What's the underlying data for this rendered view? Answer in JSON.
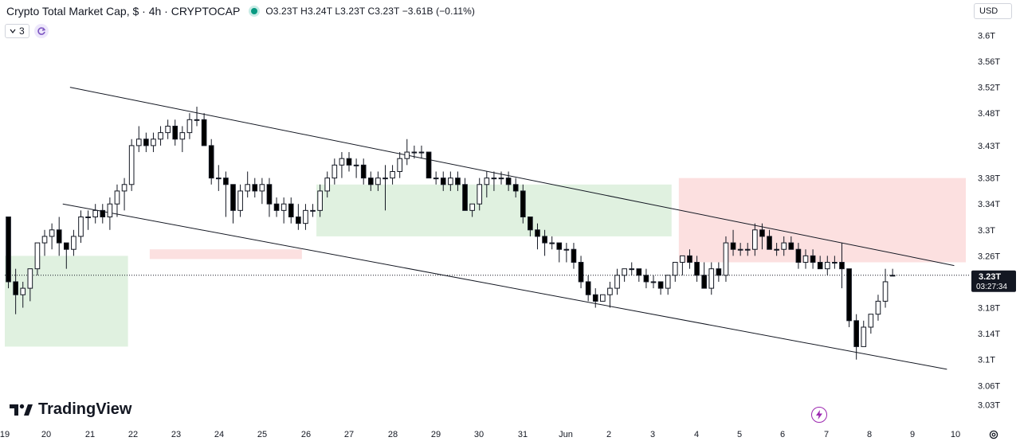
{
  "header": {
    "title": "Crypto Total Market Cap, $ · 4h · CRYPTOCAP",
    "ohlc": "O3.23T H3.24T L3.23T C3.23T −3.61B (−0.11%)",
    "indicator_count": "3"
  },
  "currency_button": "USD",
  "logo_text": "TradingView",
  "price_badge": {
    "price": "3.23T",
    "countdown": "03:27:34"
  },
  "colors": {
    "up": "#ffffff",
    "down": "#000000",
    "cloud_bull": "#a5d6a7",
    "cloud_bear": "#f5a6a6",
    "accent": "#9c27b0"
  },
  "icons": [
    "chevron-down-icon",
    "refresh-icon",
    "flash-icon",
    "gear-icon",
    "tradingview-logo-icon"
  ],
  "chart_data": {
    "type": "candlestick",
    "title": "Crypto Total Market Cap",
    "timeframe": "4h",
    "y_axis": {
      "ticks": [
        "3.6T",
        "3.56T",
        "3.52T",
        "3.48T",
        "3.43T",
        "3.38T",
        "3.34T",
        "3.3T",
        "3.26T",
        "3.23T",
        "3.18T",
        "3.14T",
        "3.1T",
        "3.06T",
        "3.03T"
      ],
      "tick_values": [
        3.6,
        3.56,
        3.52,
        3.48,
        3.43,
        3.38,
        3.34,
        3.3,
        3.26,
        3.18,
        3.14,
        3.1,
        3.06,
        3.03
      ],
      "range": [
        3.01,
        3.63
      ]
    },
    "x_axis": {
      "ticks": [
        "19",
        "20",
        "21",
        "22",
        "23",
        "24",
        "25",
        "26",
        "27",
        "28",
        "29",
        "30",
        "31",
        "Jun",
        "2",
        "3",
        "4",
        "5",
        "6",
        "7",
        "8",
        "9",
        "10"
      ],
      "index_range": [
        0.0,
        132.6
      ]
    },
    "current_price": 3.23,
    "candles": [
      [
        3.32,
        3.32,
        3.21,
        3.22
      ],
      [
        3.22,
        3.24,
        3.17,
        3.2
      ],
      [
        3.2,
        3.22,
        3.18,
        3.21
      ],
      [
        3.21,
        3.24,
        3.19,
        3.24
      ],
      [
        3.24,
        3.28,
        3.23,
        3.28
      ],
      [
        3.28,
        3.3,
        3.26,
        3.29
      ],
      [
        3.29,
        3.31,
        3.27,
        3.3
      ],
      [
        3.3,
        3.32,
        3.26,
        3.28
      ],
      [
        3.28,
        3.28,
        3.24,
        3.27
      ],
      [
        3.27,
        3.3,
        3.26,
        3.29
      ],
      [
        3.29,
        3.33,
        3.28,
        3.32
      ],
      [
        3.32,
        3.33,
        3.3,
        3.32
      ],
      [
        3.32,
        3.34,
        3.31,
        3.33
      ],
      [
        3.33,
        3.34,
        3.31,
        3.32
      ],
      [
        3.32,
        3.35,
        3.3,
        3.34
      ],
      [
        3.34,
        3.37,
        3.32,
        3.36
      ],
      [
        3.36,
        3.38,
        3.33,
        3.37
      ],
      [
        3.37,
        3.44,
        3.36,
        3.43
      ],
      [
        3.43,
        3.46,
        3.42,
        3.44
      ],
      [
        3.44,
        3.45,
        3.42,
        3.43
      ],
      [
        3.43,
        3.45,
        3.42,
        3.44
      ],
      [
        3.44,
        3.46,
        3.43,
        3.45
      ],
      [
        3.45,
        3.47,
        3.44,
        3.46
      ],
      [
        3.46,
        3.47,
        3.43,
        3.44
      ],
      [
        3.44,
        3.46,
        3.42,
        3.45
      ],
      [
        3.45,
        3.48,
        3.44,
        3.47
      ],
      [
        3.47,
        3.49,
        3.46,
        3.47
      ],
      [
        3.47,
        3.48,
        3.43,
        3.43
      ],
      [
        3.43,
        3.44,
        3.37,
        3.38
      ],
      [
        3.38,
        3.4,
        3.36,
        3.38
      ],
      [
        3.38,
        3.39,
        3.32,
        3.37
      ],
      [
        3.37,
        3.37,
        3.31,
        3.33
      ],
      [
        3.33,
        3.37,
        3.32,
        3.36
      ],
      [
        3.36,
        3.39,
        3.35,
        3.37
      ],
      [
        3.37,
        3.38,
        3.35,
        3.36
      ],
      [
        3.36,
        3.38,
        3.34,
        3.37
      ],
      [
        3.37,
        3.38,
        3.32,
        3.34
      ],
      [
        3.34,
        3.35,
        3.32,
        3.33
      ],
      [
        3.33,
        3.35,
        3.31,
        3.34
      ],
      [
        3.34,
        3.35,
        3.31,
        3.32
      ],
      [
        3.32,
        3.34,
        3.3,
        3.31
      ],
      [
        3.31,
        3.34,
        3.3,
        3.33
      ],
      [
        3.33,
        3.34,
        3.32,
        3.33
      ],
      [
        3.33,
        3.37,
        3.32,
        3.36
      ],
      [
        3.36,
        3.39,
        3.35,
        3.38
      ],
      [
        3.38,
        3.41,
        3.37,
        3.4
      ],
      [
        3.4,
        3.42,
        3.38,
        3.41
      ],
      [
        3.41,
        3.42,
        3.39,
        3.4
      ],
      [
        3.4,
        3.41,
        3.38,
        3.4
      ],
      [
        3.4,
        3.41,
        3.37,
        3.38
      ],
      [
        3.38,
        3.39,
        3.36,
        3.37
      ],
      [
        3.37,
        3.39,
        3.36,
        3.38
      ],
      [
        3.38,
        3.4,
        3.33,
        3.38
      ],
      [
        3.38,
        3.4,
        3.37,
        3.39
      ],
      [
        3.39,
        3.42,
        3.38,
        3.41
      ],
      [
        3.41,
        3.44,
        3.4,
        3.42
      ],
      [
        3.42,
        3.43,
        3.41,
        3.42
      ],
      [
        3.42,
        3.43,
        3.41,
        3.42
      ],
      [
        3.42,
        3.42,
        3.38,
        3.38
      ],
      [
        3.38,
        3.39,
        3.37,
        3.38
      ],
      [
        3.38,
        3.39,
        3.36,
        3.37
      ],
      [
        3.37,
        3.39,
        3.36,
        3.38
      ],
      [
        3.38,
        3.39,
        3.36,
        3.37
      ],
      [
        3.37,
        3.38,
        3.33,
        3.33
      ],
      [
        3.33,
        3.34,
        3.32,
        3.34
      ],
      [
        3.34,
        3.38,
        3.33,
        3.37
      ],
      [
        3.37,
        3.39,
        3.35,
        3.38
      ],
      [
        3.38,
        3.39,
        3.36,
        3.38
      ],
      [
        3.38,
        3.39,
        3.37,
        3.38
      ],
      [
        3.38,
        3.39,
        3.36,
        3.37
      ],
      [
        3.37,
        3.38,
        3.35,
        3.36
      ],
      [
        3.36,
        3.37,
        3.31,
        3.32
      ],
      [
        3.32,
        3.32,
        3.29,
        3.3
      ],
      [
        3.3,
        3.31,
        3.27,
        3.29
      ],
      [
        3.29,
        3.3,
        3.26,
        3.28
      ],
      [
        3.28,
        3.29,
        3.27,
        3.28
      ],
      [
        3.28,
        3.28,
        3.25,
        3.27
      ],
      [
        3.27,
        3.28,
        3.25,
        3.27
      ],
      [
        3.27,
        3.28,
        3.24,
        3.25
      ],
      [
        3.25,
        3.26,
        3.21,
        3.22
      ],
      [
        3.22,
        3.23,
        3.19,
        3.2
      ],
      [
        3.2,
        3.21,
        3.18,
        3.19
      ],
      [
        3.19,
        3.2,
        3.19,
        3.2
      ],
      [
        3.2,
        3.22,
        3.18,
        3.21
      ],
      [
        3.21,
        3.24,
        3.2,
        3.23
      ],
      [
        3.23,
        3.24,
        3.22,
        3.24
      ],
      [
        3.24,
        3.25,
        3.23,
        3.24
      ],
      [
        3.24,
        3.24,
        3.22,
        3.23
      ],
      [
        3.23,
        3.24,
        3.21,
        3.22
      ],
      [
        3.22,
        3.23,
        3.21,
        3.22
      ],
      [
        3.22,
        3.22,
        3.2,
        3.21
      ],
      [
        3.21,
        3.23,
        3.2,
        3.23
      ],
      [
        3.23,
        3.25,
        3.22,
        3.25
      ],
      [
        3.25,
        3.26,
        3.23,
        3.26
      ],
      [
        3.26,
        3.27,
        3.24,
        3.25
      ],
      [
        3.25,
        3.26,
        3.22,
        3.23
      ],
      [
        3.23,
        3.25,
        3.21,
        3.21
      ],
      [
        3.21,
        3.25,
        3.2,
        3.24
      ],
      [
        3.24,
        3.25,
        3.22,
        3.23
      ],
      [
        3.23,
        3.29,
        3.22,
        3.28
      ],
      [
        3.28,
        3.3,
        3.26,
        3.27
      ],
      [
        3.27,
        3.28,
        3.26,
        3.27
      ],
      [
        3.27,
        3.28,
        3.26,
        3.27
      ],
      [
        3.27,
        3.31,
        3.26,
        3.3
      ],
      [
        3.3,
        3.31,
        3.27,
        3.29
      ],
      [
        3.29,
        3.3,
        3.27,
        3.27
      ],
      [
        3.27,
        3.28,
        3.26,
        3.27
      ],
      [
        3.27,
        3.29,
        3.26,
        3.28
      ],
      [
        3.28,
        3.29,
        3.27,
        3.27
      ],
      [
        3.27,
        3.28,
        3.24,
        3.25
      ],
      [
        3.25,
        3.27,
        3.24,
        3.26
      ],
      [
        3.26,
        3.27,
        3.24,
        3.25
      ],
      [
        3.25,
        3.26,
        3.24,
        3.24
      ],
      [
        3.24,
        3.26,
        3.23,
        3.25
      ],
      [
        3.25,
        3.26,
        3.24,
        3.25
      ],
      [
        3.25,
        3.28,
        3.21,
        3.24
      ],
      [
        3.24,
        3.24,
        3.15,
        3.16
      ],
      [
        3.16,
        3.17,
        3.1,
        3.12
      ],
      [
        3.12,
        3.16,
        3.12,
        3.15
      ],
      [
        3.15,
        3.17,
        3.14,
        3.17
      ],
      [
        3.17,
        3.2,
        3.16,
        3.19
      ],
      [
        3.19,
        3.24,
        3.18,
        3.22
      ],
      [
        3.23,
        3.24,
        3.23,
        3.23
      ]
    ],
    "channel_lines": [
      {
        "name": "upper",
        "x": [
          9,
          131
        ],
        "y": [
          3.52,
          3.245
        ]
      },
      {
        "name": "lower",
        "x": [
          8,
          130
        ],
        "y": [
          3.34,
          3.085
        ]
      }
    ],
    "ichimoku_cloud": [
      {
        "x_start": 0,
        "x_end": 17,
        "top": 3.26,
        "bottom": 3.12,
        "color": "bull"
      },
      {
        "x_start": 43,
        "x_end": 92,
        "top": 3.37,
        "bottom": 3.29,
        "color": "bull"
      },
      {
        "x_start": 20,
        "x_end": 41,
        "top": 3.27,
        "bottom": 3.255,
        "color": "bear"
      },
      {
        "x_start": 93,
        "x_end": 142,
        "top": 3.38,
        "bottom": 3.25,
        "color": "bear"
      }
    ],
    "grid": false,
    "legend": "top-left"
  }
}
